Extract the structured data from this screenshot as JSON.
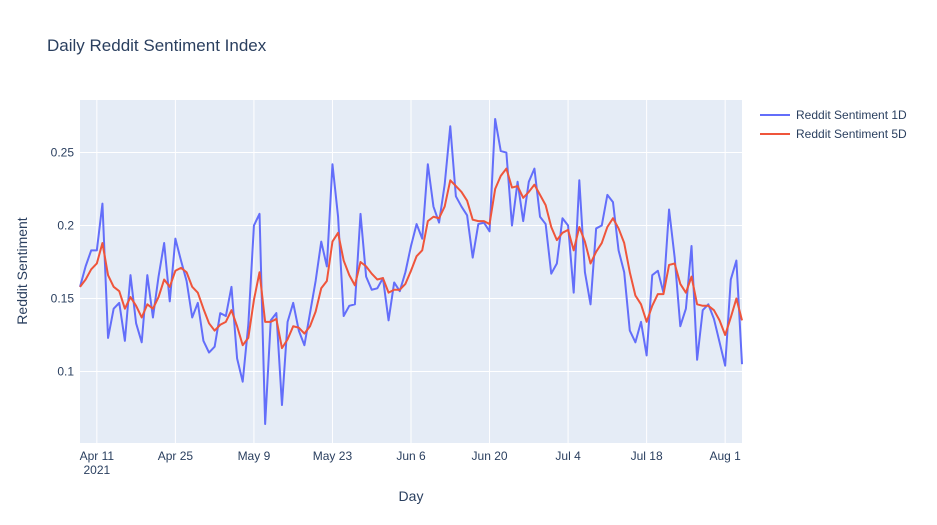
{
  "chart_data": {
    "type": "line",
    "title": "Daily Reddit Sentiment Index",
    "x_label": "Day",
    "y_label": "Reddit Sentiment",
    "x": [
      "2021-04-08",
      "2021-04-09",
      "2021-04-10",
      "2021-04-11",
      "2021-04-12",
      "2021-04-13",
      "2021-04-14",
      "2021-04-15",
      "2021-04-16",
      "2021-04-17",
      "2021-04-18",
      "2021-04-19",
      "2021-04-20",
      "2021-04-21",
      "2021-04-22",
      "2021-04-23",
      "2021-04-24",
      "2021-04-25",
      "2021-04-26",
      "2021-04-27",
      "2021-04-28",
      "2021-04-29",
      "2021-04-30",
      "2021-05-01",
      "2021-05-02",
      "2021-05-03",
      "2021-05-04",
      "2021-05-05",
      "2021-05-06",
      "2021-05-07",
      "2021-05-08",
      "2021-05-09",
      "2021-05-10",
      "2021-05-11",
      "2021-05-12",
      "2021-05-13",
      "2021-05-14",
      "2021-05-15",
      "2021-05-16",
      "2021-05-17",
      "2021-05-18",
      "2021-05-19",
      "2021-05-20",
      "2021-05-21",
      "2021-05-22",
      "2021-05-23",
      "2021-05-24",
      "2021-05-25",
      "2021-05-26",
      "2021-05-27",
      "2021-05-28",
      "2021-05-29",
      "2021-05-30",
      "2021-05-31",
      "2021-06-01",
      "2021-06-02",
      "2021-06-03",
      "2021-06-04",
      "2021-06-05",
      "2021-06-06",
      "2021-06-07",
      "2021-06-08",
      "2021-06-09",
      "2021-06-10",
      "2021-06-11",
      "2021-06-12",
      "2021-06-13",
      "2021-06-14",
      "2021-06-15",
      "2021-06-16",
      "2021-06-17",
      "2021-06-18",
      "2021-06-19",
      "2021-06-20",
      "2021-06-21",
      "2021-06-22",
      "2021-06-23",
      "2021-06-24",
      "2021-06-25",
      "2021-06-26",
      "2021-06-27",
      "2021-06-28",
      "2021-06-29",
      "2021-06-30",
      "2021-07-01",
      "2021-07-02",
      "2021-07-03",
      "2021-07-04",
      "2021-07-05",
      "2021-07-06",
      "2021-07-07",
      "2021-07-08",
      "2021-07-09",
      "2021-07-10",
      "2021-07-11",
      "2021-07-12",
      "2021-07-13",
      "2021-07-14",
      "2021-07-15",
      "2021-07-16",
      "2021-07-17",
      "2021-07-18",
      "2021-07-19",
      "2021-07-20",
      "2021-07-21",
      "2021-07-22",
      "2021-07-23",
      "2021-07-24",
      "2021-07-25",
      "2021-07-26",
      "2021-07-27",
      "2021-07-28",
      "2021-07-29",
      "2021-07-30",
      "2021-07-31",
      "2021-08-01",
      "2021-08-02",
      "2021-08-03",
      "2021-08-04"
    ],
    "series": [
      {
        "name": "Reddit Sentiment 1D",
        "color": "#636efa",
        "values": [
          0.158,
          0.172,
          0.183,
          0.183,
          0.215,
          0.123,
          0.143,
          0.147,
          0.121,
          0.166,
          0.133,
          0.12,
          0.166,
          0.137,
          0.165,
          0.188,
          0.148,
          0.191,
          0.176,
          0.162,
          0.137,
          0.147,
          0.121,
          0.113,
          0.117,
          0.14,
          0.138,
          0.158,
          0.109,
          0.093,
          0.132,
          0.2,
          0.208,
          0.064,
          0.135,
          0.14,
          0.077,
          0.134,
          0.147,
          0.128,
          0.118,
          0.14,
          0.162,
          0.189,
          0.172,
          0.242,
          0.206,
          0.138,
          0.145,
          0.146,
          0.208,
          0.165,
          0.156,
          0.157,
          0.164,
          0.135,
          0.161,
          0.155,
          0.168,
          0.186,
          0.201,
          0.191,
          0.242,
          0.213,
          0.202,
          0.228,
          0.268,
          0.22,
          0.213,
          0.207,
          0.178,
          0.201,
          0.202,
          0.196,
          0.273,
          0.251,
          0.25,
          0.2,
          0.23,
          0.203,
          0.23,
          0.239,
          0.206,
          0.201,
          0.167,
          0.174,
          0.205,
          0.2,
          0.154,
          0.231,
          0.168,
          0.146,
          0.198,
          0.2,
          0.221,
          0.216,
          0.183,
          0.168,
          0.128,
          0.12,
          0.134,
          0.111,
          0.166,
          0.169,
          0.154,
          0.211,
          0.178,
          0.131,
          0.143,
          0.186,
          0.108,
          0.142,
          0.146,
          0.136,
          0.12,
          0.104,
          0.163,
          0.176,
          0.105
        ]
      },
      {
        "name": "Reddit Sentiment 5D",
        "color": "#ef553b",
        "values": [
          0.158,
          0.163,
          0.17,
          0.174,
          0.188,
          0.166,
          0.158,
          0.155,
          0.143,
          0.151,
          0.145,
          0.137,
          0.146,
          0.143,
          0.151,
          0.163,
          0.158,
          0.169,
          0.171,
          0.168,
          0.158,
          0.154,
          0.143,
          0.133,
          0.128,
          0.132,
          0.134,
          0.142,
          0.131,
          0.118,
          0.123,
          0.149,
          0.168,
          0.134,
          0.134,
          0.136,
          0.116,
          0.122,
          0.131,
          0.13,
          0.126,
          0.131,
          0.141,
          0.157,
          0.162,
          0.189,
          0.195,
          0.176,
          0.166,
          0.159,
          0.175,
          0.172,
          0.167,
          0.163,
          0.164,
          0.154,
          0.156,
          0.156,
          0.16,
          0.169,
          0.179,
          0.183,
          0.203,
          0.206,
          0.205,
          0.213,
          0.231,
          0.227,
          0.223,
          0.217,
          0.204,
          0.203,
          0.203,
          0.201,
          0.225,
          0.234,
          0.239,
          0.226,
          0.227,
          0.219,
          0.223,
          0.228,
          0.221,
          0.214,
          0.199,
          0.19,
          0.195,
          0.197,
          0.183,
          0.199,
          0.189,
          0.174,
          0.182,
          0.188,
          0.199,
          0.205,
          0.198,
          0.188,
          0.168,
          0.152,
          0.146,
          0.134,
          0.145,
          0.153,
          0.153,
          0.173,
          0.174,
          0.16,
          0.154,
          0.165,
          0.146,
          0.145,
          0.145,
          0.142,
          0.135,
          0.125,
          0.137,
          0.15,
          0.135
        ]
      }
    ],
    "xlim": [
      "2021-04-08",
      "2021-08-04"
    ],
    "xticks": [
      {
        "value": "2021-04-11",
        "label": "Apr 11\n2021"
      },
      {
        "value": "2021-04-25",
        "label": "Apr 25"
      },
      {
        "value": "2021-05-09",
        "label": "May 9"
      },
      {
        "value": "2021-05-23",
        "label": "May 23"
      },
      {
        "value": "2021-06-06",
        "label": "Jun 6"
      },
      {
        "value": "2021-06-20",
        "label": "Jun 20"
      },
      {
        "value": "2021-07-04",
        "label": "Jul 4"
      },
      {
        "value": "2021-07-18",
        "label": "Jul 18"
      },
      {
        "value": "2021-08-01",
        "label": "Aug 1"
      }
    ],
    "ylim": [
      0.051,
      0.286
    ],
    "yticks": [
      0.1,
      0.15,
      0.2,
      0.25
    ],
    "grid": true,
    "legend": "right"
  }
}
